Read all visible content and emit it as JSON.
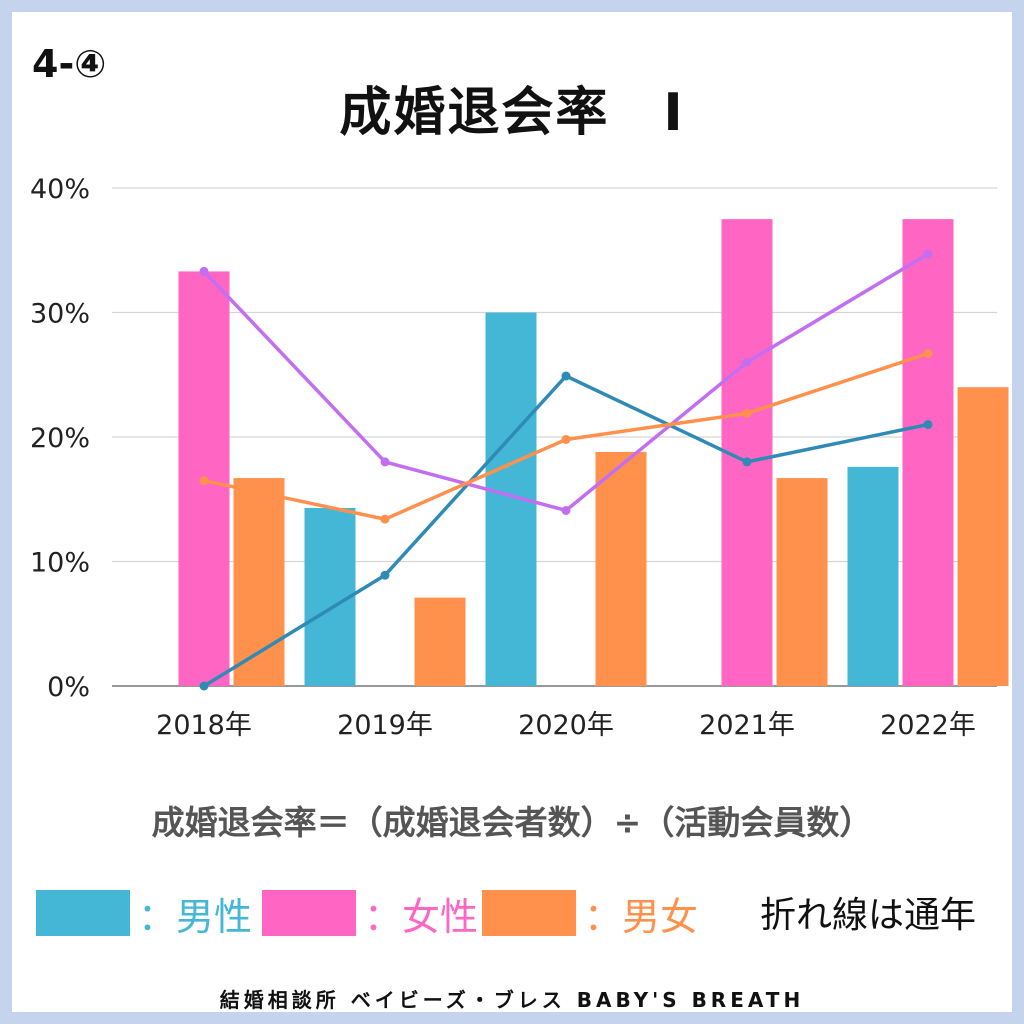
{
  "header": {
    "corner_label": "4-④",
    "title": "成婚退会率　Ⅰ"
  },
  "formula": "成婚退会率＝（成婚退会者数）÷（活動会員数）",
  "legend": {
    "male": {
      "label": "：男性",
      "color": "#45b7d6"
    },
    "female": {
      "label": "：女性",
      "color": "#ff66c4"
    },
    "both": {
      "label": "：男女",
      "color": "#ff914d"
    },
    "note": "折れ線は通年"
  },
  "footer": "結婚相談所 ベイビーズ・ブレス BABY'S BREATH",
  "chart_data": {
    "type": "bar",
    "categories": [
      "2018年",
      "2019年",
      "2020年",
      "2021年",
      "2022年"
    ],
    "y_ticks": [
      "0%",
      "10%",
      "20%",
      "30%",
      "40%"
    ],
    "ylim": [
      0,
      40
    ],
    "grid": true,
    "bar_series": [
      {
        "name": "男性",
        "color": "#45b7d6",
        "values": [
          null,
          14.3,
          30.0,
          null,
          17.6
        ]
      },
      {
        "name": "女性",
        "color": "#ff66c4",
        "values": [
          33.3,
          null,
          null,
          37.5,
          37.5
        ]
      },
      {
        "name": "男女",
        "color": "#ff914d",
        "values": [
          16.7,
          7.1,
          18.8,
          16.7,
          24.0
        ]
      }
    ],
    "line_series": [
      {
        "name": "男性（通年）",
        "color": "#2f8ab5",
        "values": [
          0.0,
          8.9,
          24.9,
          18.0,
          21.0
        ]
      },
      {
        "name": "女性（通年）",
        "color": "#c36ef0",
        "values": [
          33.3,
          18.0,
          14.1,
          26.0,
          34.7
        ]
      },
      {
        "name": "男女（通年）",
        "color": "#ff914d",
        "values": [
          16.5,
          13.4,
          19.8,
          21.9,
          26.7
        ]
      }
    ]
  }
}
